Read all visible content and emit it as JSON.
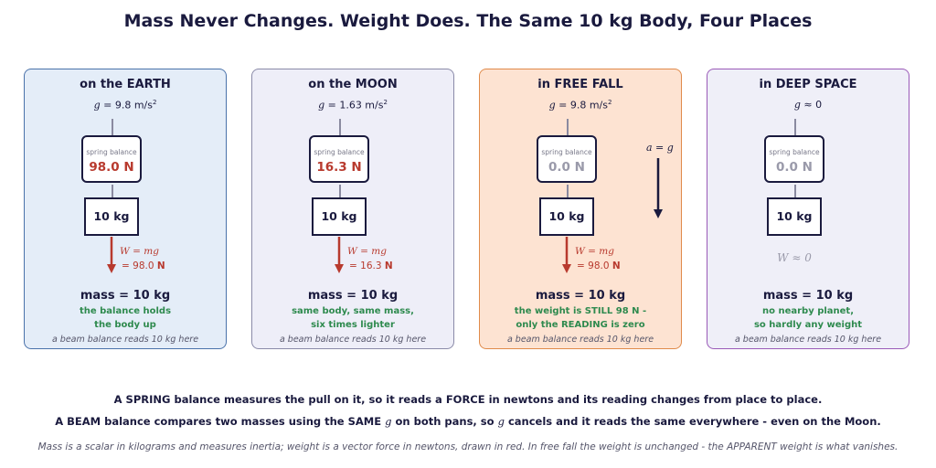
{
  "title": "Mass Never Changes. Weight Does.  The Same 10 kg Body, Four Places",
  "colors": {
    "weight_red": "#b83a2e",
    "note_green": "#2e8a4e",
    "navy": "#1a1a3e"
  },
  "panels": [
    {
      "title": "on the EARTH",
      "g_text": "= 9.8 m/s",
      "balance_label": "spring balance",
      "reading": "98.0 N",
      "mass_label": "10 kg",
      "weight_formula": "W = mg",
      "weight_value": "= 98.0",
      "weight_unit": "N",
      "mass_line": "mass = 10 kg",
      "note1": "the balance holds",
      "note2": "the body up",
      "beam": "a beam balance reads 10 kg here"
    },
    {
      "title": "on the MOON",
      "g_text": "= 1.63 m/s",
      "balance_label": "spring balance",
      "reading": "16.3 N",
      "mass_label": "10 kg",
      "weight_formula": "W = mg",
      "weight_value": "= 16.3",
      "weight_unit": "N",
      "mass_line": "mass = 10 kg",
      "note1": "same body, same mass,",
      "note2": "six times lighter",
      "beam": "a beam balance reads 10 kg here"
    },
    {
      "title": "in FREE FALL",
      "g_text": "= 9.8 m/s",
      "balance_label": "spring balance",
      "reading": "0.0 N",
      "mass_label": "10 kg",
      "weight_formula": "W = mg",
      "weight_value": "= 98.0",
      "weight_unit": "N",
      "accel_label": "a = g",
      "mass_line": "mass = 10 kg",
      "note1": "the weight is STILL 98 N -",
      "note2": "only the READING is zero",
      "beam": "a beam balance reads 10 kg here"
    },
    {
      "title": "in DEEP SPACE",
      "g_text": "≈ 0",
      "balance_label": "spring balance",
      "reading": "0.0 N",
      "mass_label": "10 kg",
      "weight_approx": "W ≈ 0",
      "mass_line": "mass = 10 kg",
      "note1": "no nearby planet,",
      "note2": "so hardly any weight",
      "beam": "a beam balance reads 10 kg here"
    }
  ],
  "footer": {
    "line1": "A SPRING balance measures the pull on it, so it reads a FORCE in newtons and its reading changes from place to place.",
    "line2_a": "A BEAM balance compares two masses using the SAME",
    "line2_b": "on both pans, so",
    "line2_c": "cancels and it reads the same everywhere - even on the Moon.",
    "g_symbol": "g",
    "line3": "Mass is a scalar in kilograms and measures inertia; weight is a vector force in newtons, drawn in red. In free fall the weight is unchanged - the APPARENT weight is what vanishes."
  }
}
